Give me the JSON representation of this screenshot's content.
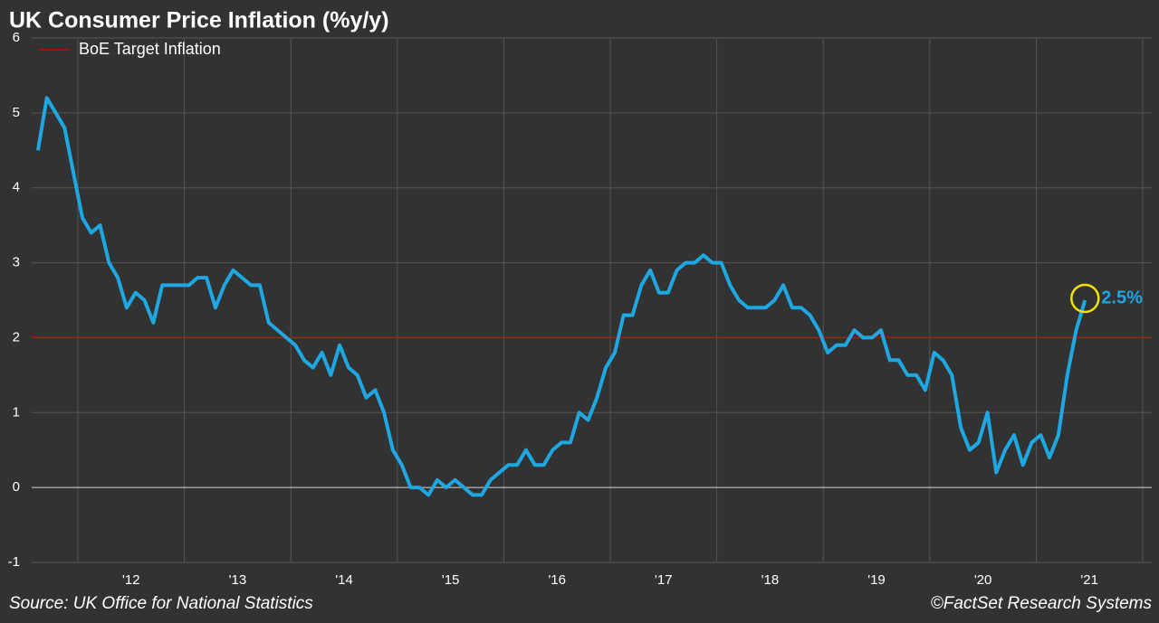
{
  "chart_data": {
    "type": "line",
    "title": "UK Consumer Price Inflation (%y/y)",
    "source": "Source: UK Office for National Statistics",
    "credit": "©FactSet Research Systems",
    "xlim": [
      2011.566,
      2022.085
    ],
    "xgrid": [
      2012,
      2013,
      2014,
      2015,
      2016,
      2017,
      2018,
      2019,
      2020,
      2021,
      2022
    ],
    "xticks": [
      {
        "value": 2012.5,
        "label": "'12"
      },
      {
        "value": 2013.5,
        "label": "'13"
      },
      {
        "value": 2014.5,
        "label": "'14"
      },
      {
        "value": 2015.5,
        "label": "'15"
      },
      {
        "value": 2016.5,
        "label": "'16"
      },
      {
        "value": 2017.5,
        "label": "'17"
      },
      {
        "value": 2018.5,
        "label": "'18"
      },
      {
        "value": 2019.5,
        "label": "'19"
      },
      {
        "value": 2020.5,
        "label": "'20"
      },
      {
        "value": 2021.5,
        "label": "'21"
      }
    ],
    "ylim": [
      -1,
      6
    ],
    "yticks": [
      -1,
      0,
      1,
      2,
      3,
      4,
      5,
      6
    ],
    "grid": true,
    "legend": "top-left",
    "reference_lines": [
      {
        "name": "BoE Target Inflation",
        "value": 2,
        "color": "#d40000"
      }
    ],
    "x": [
      2011.625,
      2011.708,
      2011.792,
      2011.875,
      2011.958,
      2012.042,
      2012.125,
      2012.208,
      2012.292,
      2012.375,
      2012.458,
      2012.542,
      2012.625,
      2012.708,
      2012.792,
      2012.875,
      2012.958,
      2013.042,
      2013.125,
      2013.208,
      2013.292,
      2013.375,
      2013.458,
      2013.542,
      2013.625,
      2013.708,
      2013.792,
      2013.875,
      2013.958,
      2014.042,
      2014.125,
      2014.208,
      2014.292,
      2014.375,
      2014.458,
      2014.542,
      2014.625,
      2014.708,
      2014.792,
      2014.875,
      2014.958,
      2015.042,
      2015.125,
      2015.208,
      2015.292,
      2015.375,
      2015.458,
      2015.542,
      2015.625,
      2015.708,
      2015.792,
      2015.875,
      2015.958,
      2016.042,
      2016.125,
      2016.208,
      2016.292,
      2016.375,
      2016.458,
      2016.542,
      2016.625,
      2016.708,
      2016.792,
      2016.875,
      2016.958,
      2017.042,
      2017.125,
      2017.208,
      2017.292,
      2017.375,
      2017.458,
      2017.542,
      2017.625,
      2017.708,
      2017.792,
      2017.875,
      2017.958,
      2018.042,
      2018.125,
      2018.208,
      2018.292,
      2018.375,
      2018.458,
      2018.542,
      2018.625,
      2018.708,
      2018.792,
      2018.875,
      2018.958,
      2019.042,
      2019.125,
      2019.208,
      2019.292,
      2019.375,
      2019.458,
      2019.542,
      2019.625,
      2019.708,
      2019.792,
      2019.875,
      2019.958,
      2020.042,
      2020.125,
      2020.208,
      2020.292,
      2020.375,
      2020.458,
      2020.542,
      2020.625,
      2020.708,
      2020.792,
      2020.875,
      2020.958,
      2021.042,
      2021.125,
      2021.208,
      2021.292,
      2021.375,
      2021.458
    ],
    "series": [
      {
        "color": "#1ea7e1",
        "values": [
          4.5,
          5.2,
          5.0,
          4.8,
          4.2,
          3.6,
          3.4,
          3.5,
          3.0,
          2.8,
          2.4,
          2.6,
          2.5,
          2.2,
          2.7,
          2.7,
          2.7,
          2.7,
          2.8,
          2.8,
          2.4,
          2.7,
          2.9,
          2.8,
          2.7,
          2.7,
          2.2,
          2.1,
          2.0,
          1.9,
          1.7,
          1.6,
          1.8,
          1.5,
          1.9,
          1.6,
          1.5,
          1.2,
          1.3,
          1.0,
          0.5,
          0.3,
          0.0,
          0.0,
          -0.1,
          0.1,
          0.0,
          0.1,
          0.0,
          -0.1,
          -0.1,
          0.1,
          0.2,
          0.3,
          0.3,
          0.5,
          0.3,
          0.3,
          0.5,
          0.6,
          0.6,
          1.0,
          0.9,
          1.2,
          1.6,
          1.8,
          2.3,
          2.3,
          2.7,
          2.9,
          2.6,
          2.6,
          2.9,
          3.0,
          3.0,
          3.1,
          3.0,
          3.0,
          2.7,
          2.5,
          2.4,
          2.4,
          2.4,
          2.5,
          2.7,
          2.4,
          2.4,
          2.3,
          2.1,
          1.8,
          1.9,
          1.9,
          2.1,
          2.0,
          2.0,
          2.1,
          1.7,
          1.7,
          1.5,
          1.5,
          1.3,
          1.8,
          1.7,
          1.5,
          0.8,
          0.5,
          0.6,
          1.0,
          0.2,
          0.5,
          0.7,
          0.3,
          0.6,
          0.7,
          0.4,
          0.7,
          1.5,
          2.1,
          2.5
        ],
        "value_labels": [
          null,
          null,
          null,
          null,
          null,
          null,
          null,
          null,
          null,
          null,
          null,
          null,
          null,
          null,
          null,
          null,
          null,
          null,
          null,
          null,
          null,
          null,
          null,
          null,
          null,
          null,
          null,
          null,
          null,
          null,
          null,
          null,
          null,
          null,
          null,
          null,
          null,
          null,
          null,
          null,
          null,
          null,
          null,
          null,
          null,
          null,
          null,
          null,
          null,
          null,
          null,
          null,
          null,
          null,
          null,
          null,
          null,
          null,
          null,
          null,
          null,
          null,
          null,
          null,
          null,
          null,
          null,
          null,
          null,
          null,
          null,
          null,
          null,
          null,
          null,
          null,
          null,
          null,
          null,
          null,
          null,
          null,
          null,
          null,
          null,
          null,
          null,
          null,
          null,
          null,
          null,
          null,
          null,
          null,
          null,
          null,
          null,
          null,
          null,
          null,
          null,
          null,
          null,
          null,
          null,
          null,
          null,
          null,
          null,
          null,
          null,
          null,
          null,
          null,
          null,
          null,
          null,
          null,
          "2.5%"
        ]
      }
    ]
  }
}
